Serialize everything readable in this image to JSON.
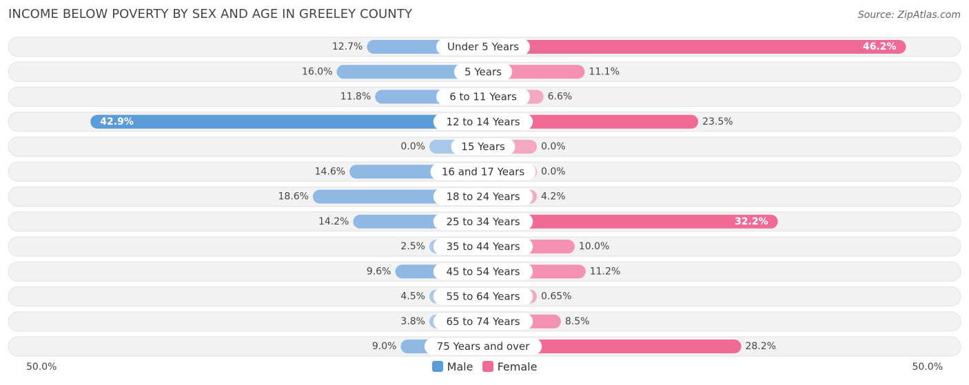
{
  "header": {
    "title": "INCOME BELOW POVERTY BY SEX AND AGE IN GREELEY COUNTY",
    "source": "Source: ZipAtlas.com"
  },
  "axis": {
    "left_label": "50.0%",
    "right_label": "50.0%"
  },
  "legend": {
    "male_label": "Male",
    "female_label": "Female"
  },
  "colors": {
    "male_strong": "#5b9bd8",
    "male_light": "#a9c9ea",
    "female_strong": "#f06a96",
    "female_light": "#f5a8c1",
    "track": "#f2f2f2"
  },
  "chart_data": {
    "type": "bar",
    "orientation": "horizontal-diverging",
    "title": "INCOME BELOW POVERTY BY SEX AND AGE IN GREELEY COUNTY",
    "xlim": [
      -50,
      50
    ],
    "categories": [
      "Under 5 Years",
      "5 Years",
      "6 to 11 Years",
      "12 to 14 Years",
      "15 Years",
      "16 and 17 Years",
      "18 to 24 Years",
      "25 to 34 Years",
      "35 to 44 Years",
      "45 to 54 Years",
      "55 to 64 Years",
      "65 to 74 Years",
      "75 Years and over"
    ],
    "series": [
      {
        "name": "Male",
        "values": [
          12.7,
          16.0,
          11.8,
          42.9,
          0.0,
          14.6,
          18.6,
          14.2,
          2.5,
          9.6,
          4.5,
          3.8,
          9.0
        ],
        "labels": [
          "12.7%",
          "16.0%",
          "11.8%",
          "42.9%",
          "0.0%",
          "14.6%",
          "18.6%",
          "14.2%",
          "2.5%",
          "9.6%",
          "4.5%",
          "3.8%",
          "9.0%"
        ]
      },
      {
        "name": "Female",
        "values": [
          46.2,
          11.1,
          6.6,
          23.5,
          0.0,
          0.0,
          4.2,
          32.2,
          10.0,
          11.2,
          0.65,
          8.5,
          28.2
        ],
        "labels": [
          "46.2%",
          "11.1%",
          "6.6%",
          "23.5%",
          "0.0%",
          "0.0%",
          "4.2%",
          "32.2%",
          "10.0%",
          "11.2%",
          "0.65%",
          "8.5%",
          "28.2%"
        ]
      }
    ],
    "legend_position": "bottom-center"
  }
}
